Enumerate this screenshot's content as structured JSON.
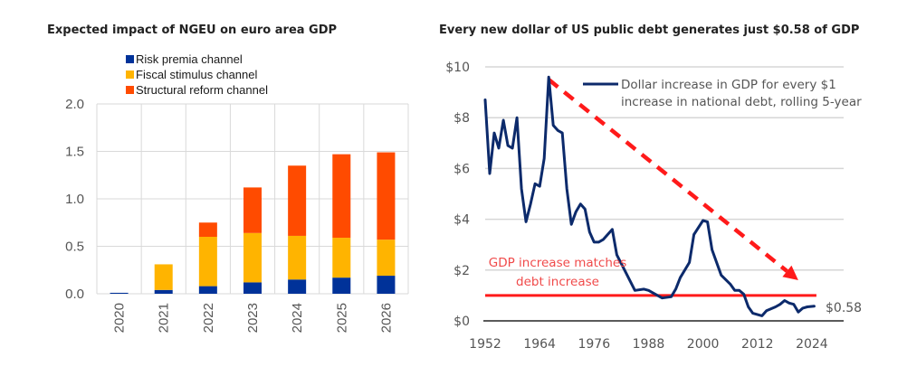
{
  "chart_data": [
    {
      "type": "bar",
      "stacked": true,
      "title": "Expected impact of NGEU on euro area GDP",
      "xlabel": "",
      "ylabel": "",
      "ylim": [
        0,
        2.0
      ],
      "yticks": [
        "0.0",
        "0.5",
        "1.0",
        "1.5",
        "2.0"
      ],
      "ytick_values": [
        0,
        0.5,
        1.0,
        1.5,
        2.0
      ],
      "grid": true,
      "legend_position": "top",
      "categories": [
        "2020",
        "2021",
        "2022",
        "2023",
        "2024",
        "2025",
        "2026"
      ],
      "series": [
        {
          "name": "Risk premia channel",
          "color": "#003299",
          "values": [
            0.01,
            0.04,
            0.08,
            0.12,
            0.15,
            0.17,
            0.19
          ]
        },
        {
          "name": "Fiscal stimulus channel",
          "color": "#FFB400",
          "values": [
            0.0,
            0.27,
            0.52,
            0.52,
            0.46,
            0.42,
            0.38
          ]
        },
        {
          "name": "Structural reform channel",
          "color": "#FF4B00",
          "values": [
            0.0,
            0.0,
            0.15,
            0.48,
            0.74,
            0.88,
            0.92
          ]
        }
      ]
    },
    {
      "type": "line",
      "title": "Every new dollar of US public debt generates just $0.58 of GDP",
      "xlabel": "",
      "ylabel": "",
      "xlim": [
        1952,
        2031
      ],
      "ylim": [
        0,
        10
      ],
      "xticks": [
        "1952",
        "1964",
        "1976",
        "1988",
        "2000",
        "2012",
        "2024"
      ],
      "xtick_values": [
        1952,
        1964,
        1976,
        1988,
        2000,
        2012,
        2024
      ],
      "yticks": [
        "$0",
        "$2",
        "$4",
        "$6",
        "$8",
        "$10"
      ],
      "ytick_values": [
        0,
        2,
        4,
        6,
        8,
        10
      ],
      "grid": true,
      "series": [
        {
          "name": "Dollar increase in GDP for every $1 increase in national debt, rolling 5-year",
          "color": "#0c2a6b",
          "x": [
            1952,
            1953,
            1954,
            1955,
            1956,
            1957,
            1958,
            1959,
            1960,
            1961,
            1962,
            1963,
            1964,
            1965,
            1966,
            1967,
            1968,
            1969,
            1970,
            1971,
            1972,
            1973,
            1974,
            1975,
            1976,
            1977,
            1978,
            1979,
            1980,
            1981,
            1983,
            1985,
            1987,
            1988,
            1990,
            1991,
            1993,
            1994,
            1995,
            1997,
            1998,
            2000,
            2001,
            2002,
            2004,
            2006,
            2007,
            2008,
            2009,
            2010,
            2011,
            2013,
            2014,
            2016,
            2017,
            2018,
            2019,
            2020,
            2021,
            2022,
            2023,
            2024.5
          ],
          "values": [
            8.7,
            5.8,
            7.4,
            6.8,
            7.9,
            6.9,
            6.8,
            8.0,
            5.2,
            3.9,
            4.6,
            5.4,
            5.3,
            6.4,
            9.6,
            7.7,
            7.5,
            7.4,
            5.2,
            3.8,
            4.3,
            4.6,
            4.4,
            3.5,
            3.1,
            3.1,
            3.2,
            3.4,
            3.6,
            2.6,
            1.9,
            1.2,
            1.25,
            1.2,
            1.0,
            0.9,
            0.95,
            1.25,
            1.7,
            2.3,
            3.4,
            3.95,
            3.9,
            2.8,
            1.8,
            1.45,
            1.2,
            1.2,
            1.05,
            0.55,
            0.3,
            0.2,
            0.4,
            0.55,
            0.65,
            0.8,
            0.7,
            0.65,
            0.35,
            0.5,
            0.55,
            0.58
          ]
        }
      ],
      "reference_line": {
        "label_line1": "GDP increase matches",
        "label_line2": "debt increase",
        "y": 1.0,
        "x_start": 1952,
        "x_end": 2025,
        "color": "#ff1a1a"
      },
      "trend_arrow": {
        "from": [
          1966,
          9.5
        ],
        "to": [
          2021,
          1.6
        ],
        "color": "#ff1a1a",
        "style": "dashed"
      },
      "end_label": "$0.58",
      "legend_line1": "Dollar increase in GDP for every $1",
      "legend_line2": "increase in national debt, rolling 5-year"
    }
  ]
}
